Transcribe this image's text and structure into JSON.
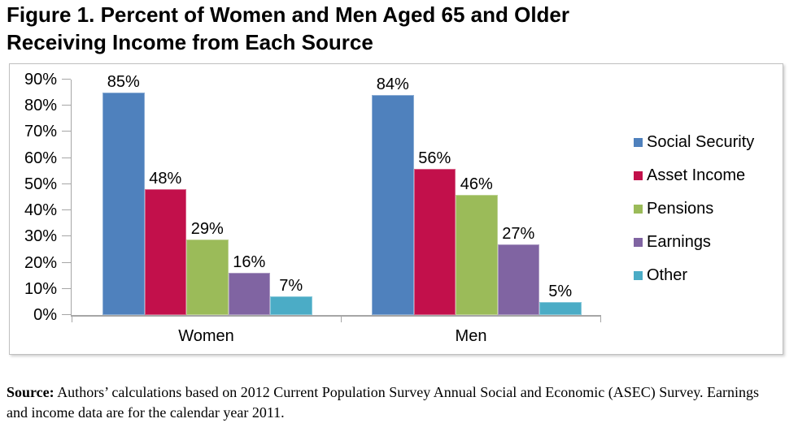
{
  "header": {
    "title_line1": "Figure 1. Percent of Women and Men Aged 65 and Older",
    "title_line2": "Receiving Income from Each Source"
  },
  "chart_data": {
    "type": "bar",
    "title": "Figure 1. Percent of Women and Men Aged 65 and Older Receiving Income from Each Source",
    "categories": [
      "Women",
      "Men"
    ],
    "series": [
      {
        "name": "Social Security",
        "color": "#4F81BD",
        "values": [
          85,
          84
        ]
      },
      {
        "name": "Asset Income",
        "color": "#C2104B",
        "values": [
          48,
          56
        ]
      },
      {
        "name": "Pensions",
        "color": "#9BBB59",
        "values": [
          29,
          46
        ]
      },
      {
        "name": "Earnings",
        "color": "#8064A2",
        "values": [
          16,
          27
        ]
      },
      {
        "name": "Other",
        "color": "#4BACC6",
        "values": [
          7,
          5
        ]
      }
    ],
    "xlabel": "",
    "ylabel": "",
    "ylim": [
      0,
      90
    ],
    "y_ticks": [
      "0%",
      "10%",
      "20%",
      "30%",
      "40%",
      "50%",
      "60%",
      "70%",
      "80%",
      "90%"
    ],
    "value_suffix": "%",
    "data_labels_shown": true,
    "grid": false,
    "legend_position": "right",
    "axis_color": "#A6A6A6"
  },
  "source": {
    "label": "Source:",
    "text": "Authors’ calculations based on 2012 Current Population Survey Annual Social and Economic (ASEC) Survey. Earnings and income data are for the calendar year 2011."
  }
}
